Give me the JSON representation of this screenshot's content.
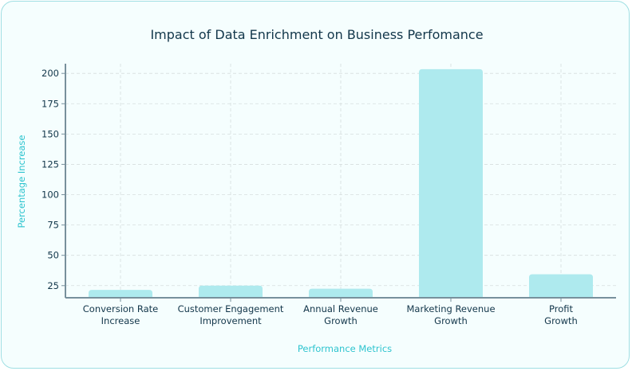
{
  "chart_data": {
    "type": "bar",
    "title": "Impact of Data Enrichment on Business Perfomance",
    "xlabel": "Performance Metrics",
    "ylabel": "Percentage Increase",
    "categories": [
      [
        "Conversion Rate",
        "Increase"
      ],
      [
        "Customer Engagement",
        "Improvement"
      ],
      [
        "Annual Revenue",
        "Growth"
      ],
      [
        "Marketing Revenue",
        "Growth"
      ],
      [
        "Profit",
        "Growth"
      ]
    ],
    "values": [
      21.5,
      25,
      22.5,
      203.5,
      34.4
    ],
    "ylim": [
      15,
      208
    ],
    "yticks": [
      25,
      50,
      75,
      100,
      125,
      150,
      175,
      200
    ],
    "grid": true,
    "bar_color": "#aeeaee",
    "axis_color": "#78909c",
    "title_color": "#12364a",
    "label_color": "#2ec4cf"
  }
}
